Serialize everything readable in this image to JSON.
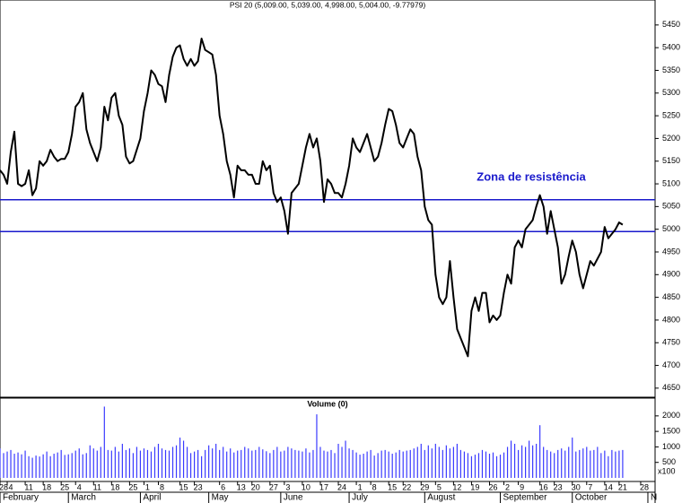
{
  "chart_data": [
    {
      "type": "line",
      "title": "PSI 20 (5,009.00, 5,039.00, 4,998.00, 5,004.00, -9.77979)",
      "annotation": "Zona de resistência",
      "color": "#000000",
      "xlim": [
        0,
        182
      ],
      "ylim": [
        4630,
        5505
      ],
      "yticks": [
        4650,
        4700,
        4750,
        4800,
        4850,
        4900,
        4950,
        5000,
        5050,
        5100,
        5150,
        5200,
        5250,
        5300,
        5350,
        5400,
        5450
      ],
      "reference_lines": {
        "values": [
          5065,
          4995
        ],
        "color": "#1a1acc"
      },
      "x": [
        0,
        1,
        2,
        3,
        4,
        5,
        6,
        7,
        8,
        9,
        10,
        11,
        12,
        13,
        14,
        15,
        16,
        17,
        18,
        19,
        20,
        21,
        22,
        23,
        24,
        25,
        26,
        27,
        28,
        29,
        30,
        31,
        32,
        33,
        34,
        35,
        36,
        37,
        38,
        39,
        40,
        41,
        42,
        43,
        44,
        45,
        46,
        47,
        48,
        49,
        50,
        51,
        52,
        53,
        54,
        55,
        56,
        57,
        58,
        59,
        60,
        61,
        62,
        63,
        64,
        65,
        66,
        67,
        68,
        69,
        70,
        71,
        72,
        73,
        74,
        75,
        76,
        77,
        78,
        79,
        80,
        81,
        82,
        83,
        84,
        85,
        86,
        87,
        88,
        89,
        90,
        91,
        92,
        93,
        94,
        95,
        96,
        97,
        98,
        99,
        100,
        101,
        102,
        103,
        104,
        105,
        106,
        107,
        108,
        109,
        110,
        111,
        112,
        113,
        114,
        115,
        116,
        117,
        118,
        119,
        120,
        121,
        122,
        123,
        124,
        125,
        126,
        127,
        128,
        129,
        130,
        131,
        132,
        133,
        134,
        135,
        136,
        137,
        138,
        139,
        140,
        141,
        142,
        143,
        144,
        145,
        146,
        147,
        148,
        149,
        150,
        151,
        152,
        153,
        154,
        155,
        156,
        157,
        158,
        159,
        160,
        161,
        162,
        163,
        164,
        165,
        166,
        167,
        168,
        169,
        170,
        171,
        172,
        173
      ],
      "values": [
        5130,
        5120,
        5100,
        5170,
        5215,
        5100,
        5095,
        5100,
        5130,
        5075,
        5090,
        5150,
        5140,
        5150,
        5175,
        5160,
        5150,
        5155,
        5155,
        5170,
        5210,
        5270,
        5280,
        5300,
        5220,
        5190,
        5170,
        5150,
        5180,
        5270,
        5240,
        5290,
        5300,
        5250,
        5230,
        5160,
        5145,
        5150,
        5175,
        5200,
        5260,
        5300,
        5350,
        5340,
        5320,
        5315,
        5280,
        5340,
        5380,
        5400,
        5405,
        5375,
        5360,
        5375,
        5360,
        5370,
        5420,
        5395,
        5390,
        5385,
        5340,
        5250,
        5210,
        5150,
        5120,
        5070,
        5140,
        5130,
        5130,
        5120,
        5120,
        5100,
        5100,
        5150,
        5130,
        5140,
        5080,
        5060,
        5070,
        5040,
        4990,
        5080,
        5090,
        5100,
        5140,
        5180,
        5210,
        5180,
        5200,
        5150,
        5060,
        5110,
        5100,
        5080,
        5080,
        5070,
        5100,
        5140,
        5200,
        5180,
        5170,
        5190,
        5210,
        5180,
        5150,
        5160,
        5190,
        5230,
        5265,
        5260,
        5230,
        5190,
        5180,
        5200,
        5220,
        5210,
        5160,
        5130,
        5050,
        5020,
        5010,
        4900,
        4850,
        4835,
        4850,
        4930,
        4850,
        4780,
        4760,
        4740,
        4720,
        4820,
        4850,
        4820,
        4860,
        4860,
        4795,
        4810,
        4800,
        4810,
        4860,
        4900,
        4880,
        4960,
        4975,
        4960,
        5000,
        5010,
        5020,
        5050,
        5075,
        5050,
        4990,
        5040,
        5000,
        4960,
        4880,
        4900,
        4940,
        4975,
        4950,
        4900,
        4870,
        4900,
        4930,
        4920,
        4935,
        4950,
        5005,
        4980,
        4990,
        5000,
        5015,
        5010
      ]
    },
    {
      "type": "bar",
      "title": "Volume (0)",
      "unit_label": "x100",
      "color": "#3a3aff",
      "xlim": [
        0,
        182
      ],
      "ylim": [
        0,
        2545
      ],
      "yticks": [
        500,
        1000,
        1500,
        2000
      ],
      "x": [
        0,
        1,
        2,
        3,
        4,
        5,
        6,
        7,
        8,
        9,
        10,
        11,
        12,
        13,
        14,
        15,
        16,
        17,
        18,
        19,
        20,
        21,
        22,
        23,
        24,
        25,
        26,
        27,
        28,
        29,
        30,
        31,
        32,
        33,
        34,
        35,
        36,
        37,
        38,
        39,
        40,
        41,
        42,
        43,
        44,
        45,
        46,
        47,
        48,
        49,
        50,
        51,
        52,
        53,
        54,
        55,
        56,
        57,
        58,
        59,
        60,
        61,
        62,
        63,
        64,
        65,
        66,
        67,
        68,
        69,
        70,
        71,
        72,
        73,
        74,
        75,
        76,
        77,
        78,
        79,
        80,
        81,
        82,
        83,
        84,
        85,
        86,
        87,
        88,
        89,
        90,
        91,
        92,
        93,
        94,
        95,
        96,
        97,
        98,
        99,
        100,
        101,
        102,
        103,
        104,
        105,
        106,
        107,
        108,
        109,
        110,
        111,
        112,
        113,
        114,
        115,
        116,
        117,
        118,
        119,
        120,
        121,
        122,
        123,
        124,
        125,
        126,
        127,
        128,
        129,
        130,
        131,
        132,
        133,
        134,
        135,
        136,
        137,
        138,
        139,
        140,
        141,
        142,
        143,
        144,
        145,
        146,
        147,
        148,
        149,
        150,
        151,
        152,
        153,
        154,
        155,
        156,
        157,
        158,
        159,
        160,
        161,
        162,
        163,
        164,
        165,
        166,
        167,
        168,
        169,
        170,
        171,
        172,
        173
      ],
      "values": [
        950,
        800,
        850,
        900,
        780,
        820,
        760,
        880,
        700,
        650,
        720,
        690,
        760,
        850,
        700,
        780,
        820,
        900,
        740,
        760,
        800,
        880,
        950,
        760,
        800,
        1050,
        950,
        880,
        1000,
        2300,
        900,
        880,
        1000,
        850,
        1100,
        900,
        950,
        800,
        1000,
        880,
        950,
        900,
        850,
        1000,
        1100,
        950,
        900,
        880,
        1000,
        1050,
        1300,
        1200,
        1000,
        800,
        850,
        900,
        700,
        900,
        1050,
        950,
        1100,
        900,
        1000,
        850,
        950,
        820,
        880,
        900,
        1000,
        950,
        880,
        900,
        1000,
        920,
        860,
        800,
        900,
        1000,
        850,
        880,
        1000,
        950,
        900,
        880,
        850,
        950,
        820,
        900,
        2050,
        1000,
        880,
        850,
        900,
        800,
        1100,
        1000,
        1200,
        950,
        900,
        820,
        750,
        780,
        850,
        900,
        720,
        800,
        880,
        900,
        850,
        780,
        820,
        900,
        850,
        880,
        900,
        950,
        1000,
        1100,
        900,
        1050,
        950,
        1100,
        1000,
        900,
        1050,
        950,
        1000,
        1100,
        900,
        850,
        800,
        700,
        750,
        800,
        900,
        850,
        780,
        820,
        700,
        750,
        820,
        1000,
        1200,
        1100,
        900,
        1050,
        1000,
        1200,
        1050,
        1100,
        1700,
        1000,
        900,
        850,
        800,
        900,
        950,
        880,
        1000,
        1300,
        850,
        900,
        950,
        1000,
        880,
        900,
        1000,
        800,
        880,
        700,
        900,
        850,
        880,
        900
      ],
      "xticks": [
        {
          "value": 0,
          "label": "28"
        },
        {
          "value": 2,
          "label": "4"
        },
        {
          "value": 7,
          "label": "11"
        },
        {
          "value": 12,
          "label": "18"
        },
        {
          "value": 17,
          "label": "25"
        },
        {
          "value": 21,
          "label": "4"
        },
        {
          "value": 26,
          "label": "11"
        },
        {
          "value": 31,
          "label": "18"
        },
        {
          "value": 36,
          "label": "25"
        },
        {
          "value": 40,
          "label": "1"
        },
        {
          "value": 44,
          "label": "8"
        },
        {
          "value": 50,
          "label": "15"
        },
        {
          "value": 54,
          "label": "23"
        },
        {
          "value": 61,
          "label": "6"
        },
        {
          "value": 66,
          "label": "13"
        },
        {
          "value": 70,
          "label": "20"
        },
        {
          "value": 75,
          "label": "27"
        },
        {
          "value": 79,
          "label": "3"
        },
        {
          "value": 84,
          "label": "10"
        },
        {
          "value": 89,
          "label": "17"
        },
        {
          "value": 94,
          "label": "24"
        },
        {
          "value": 99,
          "label": "1"
        },
        {
          "value": 103,
          "label": "8"
        },
        {
          "value": 108,
          "label": "15"
        },
        {
          "value": 112,
          "label": "22"
        },
        {
          "value": 117,
          "label": "29"
        },
        {
          "value": 121,
          "label": "5"
        },
        {
          "value": 126,
          "label": "12"
        },
        {
          "value": 131,
          "label": "19"
        },
        {
          "value": 136,
          "label": "26"
        },
        {
          "value": 140,
          "label": "2"
        },
        {
          "value": 144,
          "label": "9"
        },
        {
          "value": 150,
          "label": "16"
        },
        {
          "value": 154,
          "label": "23"
        },
        {
          "value": 159,
          "label": "30"
        },
        {
          "value": 163,
          "label": "7"
        },
        {
          "value": 168,
          "label": "14"
        },
        {
          "value": 172,
          "label": "21"
        },
        {
          "value": 178,
          "label": "28"
        }
      ],
      "month_ticks": [
        {
          "value": 0,
          "label": "February"
        },
        {
          "value": 19,
          "label": "March"
        },
        {
          "value": 39,
          "label": "April"
        },
        {
          "value": 58,
          "label": "May"
        },
        {
          "value": 78,
          "label": "June"
        },
        {
          "value": 97,
          "label": "July"
        },
        {
          "value": 118,
          "label": "August"
        },
        {
          "value": 139,
          "label": "September"
        },
        {
          "value": 159,
          "label": "October"
        },
        {
          "value": 180,
          "label": "N"
        }
      ]
    }
  ]
}
